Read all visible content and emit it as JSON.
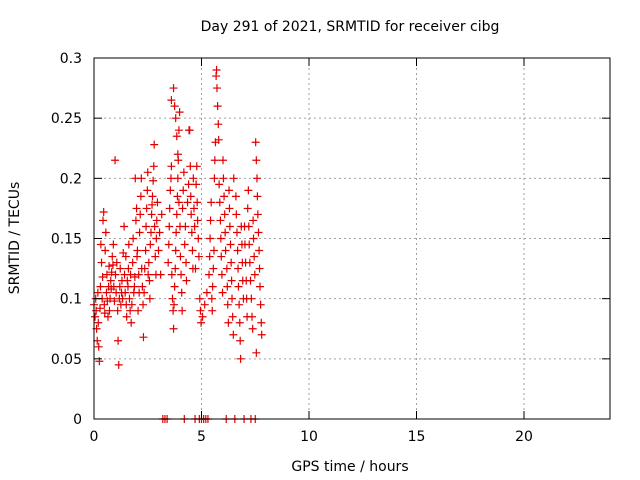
{
  "chart_data": {
    "type": "scatter",
    "title": "Day 291 of 2021, SRMTID for receiver cibg",
    "xlabel": "GPS time / hours",
    "ylabel": "SRMTID / TECUs",
    "xlim": [
      0,
      24
    ],
    "ylim": [
      0,
      0.3
    ],
    "xticks": [
      0,
      5,
      10,
      15,
      20
    ],
    "xtick_labels": [
      "0",
      "5",
      "10",
      "15",
      "20"
    ],
    "yticks": [
      0,
      0.05,
      0.1,
      0.15,
      0.2,
      0.25,
      0.3
    ],
    "ytick_labels": [
      "0",
      "0.05",
      "0.1",
      "0.15",
      "0.2",
      "0.25",
      "0.3"
    ],
    "grid": true,
    "marker": "+",
    "colors": {
      "series": "#e00000",
      "grid": "#a0a0a0",
      "axis": "#000000"
    },
    "series": [
      {
        "points": [
          [
            0.0,
            0.095
          ],
          [
            0.05,
            0.085
          ],
          [
            0.08,
            0.1
          ],
          [
            0.1,
            0.09
          ],
          [
            0.12,
            0.075
          ],
          [
            0.15,
            0.065
          ],
          [
            0.18,
            0.105
          ],
          [
            0.2,
            0.08
          ],
          [
            0.22,
            0.06
          ],
          [
            0.25,
            0.048
          ],
          [
            0.28,
            0.092
          ],
          [
            0.3,
            0.11
          ],
          [
            0.32,
            0.145
          ],
          [
            0.35,
            0.13
          ],
          [
            0.38,
            0.1
          ],
          [
            0.4,
            0.118
          ],
          [
            0.42,
            0.165
          ],
          [
            0.45,
            0.172
          ],
          [
            0.48,
            0.095
          ],
          [
            0.5,
            0.088
          ],
          [
            0.52,
            0.14
          ],
          [
            0.55,
            0.155
          ],
          [
            0.58,
            0.105
          ],
          [
            0.6,
            0.12
          ],
          [
            0.62,
            0.098
          ],
          [
            0.65,
            0.085
          ],
          [
            0.68,
            0.11
          ],
          [
            0.7,
            0.127
          ],
          [
            0.72,
            0.09
          ],
          [
            0.75,
            0.1
          ],
          [
            0.78,
            0.115
          ],
          [
            0.8,
            0.108
          ],
          [
            0.82,
            0.122
          ],
          [
            0.85,
            0.135
          ],
          [
            0.88,
            0.128
          ],
          [
            0.9,
            0.145
          ],
          [
            0.92,
            0.11
          ],
          [
            0.95,
            0.098
          ],
          [
            0.98,
            0.215
          ],
          [
            1.0,
            0.12
          ],
          [
            1.03,
            0.105
          ],
          [
            1.06,
            0.13
          ],
          [
            1.1,
            0.09
          ],
          [
            1.12,
            0.065
          ],
          [
            1.15,
            0.045
          ],
          [
            1.18,
            0.1
          ],
          [
            1.2,
            0.11
          ],
          [
            1.22,
            0.125
          ],
          [
            1.25,
            0.095
          ],
          [
            1.28,
            0.105
          ],
          [
            1.3,
            0.115
          ],
          [
            1.33,
            0.1
          ],
          [
            1.36,
            0.138
          ],
          [
            1.4,
            0.16
          ],
          [
            1.42,
            0.12
          ],
          [
            1.45,
            0.105
          ],
          [
            1.48,
            0.135
          ],
          [
            1.5,
            0.095
          ],
          [
            1.52,
            0.085
          ],
          [
            1.55,
            0.115
          ],
          [
            1.58,
            0.11
          ],
          [
            1.6,
            0.125
          ],
          [
            1.62,
            0.145
          ],
          [
            1.65,
            0.1
          ],
          [
            1.68,
            0.09
          ],
          [
            1.7,
            0.12
          ],
          [
            1.73,
            0.08
          ],
          [
            1.76,
            0.095
          ],
          [
            1.8,
            0.13
          ],
          [
            1.82,
            0.15
          ],
          [
            1.85,
            0.105
          ],
          [
            1.88,
            0.11
          ],
          [
            1.9,
            0.118
          ],
          [
            1.92,
            0.2
          ],
          [
            1.95,
            0.165
          ],
          [
            1.98,
            0.175
          ],
          [
            2.0,
            0.135
          ],
          [
            2.02,
            0.14
          ],
          [
            2.05,
            0.09
          ],
          [
            2.08,
            0.12
          ],
          [
            2.1,
            0.105
          ],
          [
            2.12,
            0.155
          ],
          [
            2.15,
            0.17
          ],
          [
            2.18,
            0.185
          ],
          [
            2.2,
            0.2
          ],
          [
            2.22,
            0.125
          ],
          [
            2.25,
            0.11
          ],
          [
            2.28,
            0.095
          ],
          [
            2.3,
            0.068
          ],
          [
            2.33,
            0.105
          ],
          [
            2.36,
            0.125
          ],
          [
            2.4,
            0.14
          ],
          [
            2.42,
            0.16
          ],
          [
            2.45,
            0.175
          ],
          [
            2.48,
            0.19
          ],
          [
            2.5,
            0.205
          ],
          [
            2.52,
            0.12
          ],
          [
            2.55,
            0.13
          ],
          [
            2.58,
            0.115
          ],
          [
            2.6,
            0.1
          ],
          [
            2.62,
            0.145
          ],
          [
            2.65,
            0.155
          ],
          [
            2.68,
            0.17
          ],
          [
            2.7,
            0.178
          ],
          [
            2.72,
            0.185
          ],
          [
            2.75,
            0.198
          ],
          [
            2.78,
            0.21
          ],
          [
            2.8,
            0.228
          ],
          [
            2.82,
            0.16
          ],
          [
            2.85,
            0.135
          ],
          [
            2.88,
            0.12
          ],
          [
            2.9,
            0.15
          ],
          [
            2.92,
            0.165
          ],
          [
            2.95,
            0.18
          ],
          [
            3.0,
            0.14
          ],
          [
            3.05,
            0.155
          ],
          [
            3.1,
            0.12
          ],
          [
            3.15,
            0.17
          ],
          [
            3.2,
            0.0
          ],
          [
            3.3,
            0.0
          ],
          [
            3.4,
            0.0
          ],
          [
            3.45,
            0.13
          ],
          [
            3.48,
            0.145
          ],
          [
            3.5,
            0.16
          ],
          [
            3.52,
            0.175
          ],
          [
            3.55,
            0.19
          ],
          [
            3.58,
            0.2
          ],
          [
            3.6,
            0.21
          ],
          [
            3.62,
            0.12
          ],
          [
            3.65,
            0.1
          ],
          [
            3.68,
            0.09
          ],
          [
            3.7,
            0.075
          ],
          [
            3.72,
            0.095
          ],
          [
            3.75,
            0.11
          ],
          [
            3.78,
            0.125
          ],
          [
            3.8,
            0.14
          ],
          [
            3.82,
            0.155
          ],
          [
            3.85,
            0.17
          ],
          [
            3.88,
            0.185
          ],
          [
            3.9,
            0.2
          ],
          [
            3.92,
            0.215
          ],
          [
            3.95,
            0.24
          ],
          [
            3.98,
            0.255
          ],
          [
            3.6,
            0.265
          ],
          [
            3.7,
            0.275
          ],
          [
            3.75,
            0.26
          ],
          [
            3.8,
            0.25
          ],
          [
            3.85,
            0.235
          ],
          [
            3.9,
            0.22
          ],
          [
            3.95,
            0.18
          ],
          [
            4.0,
            0.16
          ],
          [
            4.02,
            0.135
          ],
          [
            4.05,
            0.12
          ],
          [
            4.08,
            0.105
          ],
          [
            4.1,
            0.09
          ],
          [
            4.12,
            0.175
          ],
          [
            4.15,
            0.19
          ],
          [
            4.18,
            0.205
          ],
          [
            4.2,
            0.0
          ],
          [
            4.22,
            0.145
          ],
          [
            4.25,
            0.16
          ],
          [
            4.28,
            0.13
          ],
          [
            4.3,
            0.115
          ],
          [
            4.35,
            0.18
          ],
          [
            4.4,
            0.195
          ],
          [
            4.42,
            0.24
          ],
          [
            4.45,
            0.24
          ],
          [
            4.48,
            0.21
          ],
          [
            4.5,
            0.185
          ],
          [
            4.52,
            0.17
          ],
          [
            4.55,
            0.155
          ],
          [
            4.58,
            0.14
          ],
          [
            4.6,
            0.125
          ],
          [
            4.62,
            0.2
          ],
          [
            4.65,
            0.175
          ],
          [
            4.68,
            0.16
          ],
          [
            4.7,
            0.0
          ],
          [
            4.72,
            0.125
          ],
          [
            4.75,
            0.195
          ],
          [
            4.78,
            0.21
          ],
          [
            4.8,
            0.18
          ],
          [
            4.82,
            0.165
          ],
          [
            4.85,
            0.15
          ],
          [
            4.88,
            0.135
          ],
          [
            4.9,
            0.0
          ],
          [
            4.92,
            0.1
          ],
          [
            4.95,
            0.09
          ],
          [
            4.98,
            0.08
          ],
          [
            5.0,
            0.0
          ],
          [
            5.05,
            0.085
          ],
          [
            5.1,
            0.0
          ],
          [
            5.15,
            0.095
          ],
          [
            5.2,
            0.0
          ],
          [
            5.25,
            0.105
          ],
          [
            5.3,
            0.0
          ],
          [
            5.35,
            0.12
          ],
          [
            5.38,
            0.135
          ],
          [
            5.4,
            0.15
          ],
          [
            5.42,
            0.165
          ],
          [
            5.45,
            0.18
          ],
          [
            5.48,
            0.1
          ],
          [
            5.5,
            0.09
          ],
          [
            5.52,
            0.11
          ],
          [
            5.55,
            0.125
          ],
          [
            5.58,
            0.14
          ],
          [
            5.6,
            0.2
          ],
          [
            5.62,
            0.215
          ],
          [
            5.65,
            0.23
          ],
          [
            5.68,
            0.285
          ],
          [
            5.7,
            0.29
          ],
          [
            5.72,
            0.275
          ],
          [
            5.75,
            0.26
          ],
          [
            5.78,
            0.245
          ],
          [
            5.8,
            0.232
          ],
          [
            5.82,
            0.195
          ],
          [
            5.85,
            0.18
          ],
          [
            5.88,
            0.165
          ],
          [
            5.9,
            0.15
          ],
          [
            5.92,
            0.135
          ],
          [
            5.95,
            0.12
          ],
          [
            5.98,
            0.105
          ],
          [
            6.0,
            0.215
          ],
          [
            6.02,
            0.2
          ],
          [
            6.05,
            0.185
          ],
          [
            6.08,
            0.17
          ],
          [
            6.1,
            0.155
          ],
          [
            6.12,
            0.14
          ],
          [
            6.15,
            0.0
          ],
          [
            6.18,
            0.125
          ],
          [
            6.2,
            0.11
          ],
          [
            6.22,
            0.095
          ],
          [
            6.25,
            0.08
          ],
          [
            6.28,
            0.19
          ],
          [
            6.3,
            0.175
          ],
          [
            6.32,
            0.16
          ],
          [
            6.35,
            0.145
          ],
          [
            6.38,
            0.13
          ],
          [
            6.4,
            0.115
          ],
          [
            6.42,
            0.1
          ],
          [
            6.45,
            0.085
          ],
          [
            6.48,
            0.07
          ],
          [
            6.5,
            0.2
          ],
          [
            6.55,
            0.0
          ],
          [
            6.6,
            0.185
          ],
          [
            6.62,
            0.17
          ],
          [
            6.65,
            0.155
          ],
          [
            6.68,
            0.14
          ],
          [
            6.7,
            0.125
          ],
          [
            6.72,
            0.11
          ],
          [
            6.75,
            0.095
          ],
          [
            6.78,
            0.08
          ],
          [
            6.8,
            0.065
          ],
          [
            6.82,
            0.05
          ],
          [
            6.85,
            0.16
          ],
          [
            6.88,
            0.145
          ],
          [
            6.9,
            0.13
          ],
          [
            6.92,
            0.115
          ],
          [
            6.95,
            0.1
          ],
          [
            6.98,
            0.0
          ],
          [
            7.0,
            0.16
          ],
          [
            7.02,
            0.145
          ],
          [
            7.05,
            0.13
          ],
          [
            7.08,
            0.115
          ],
          [
            7.1,
            0.1
          ],
          [
            7.12,
            0.085
          ],
          [
            7.15,
            0.175
          ],
          [
            7.18,
            0.19
          ],
          [
            7.2,
            0.16
          ],
          [
            7.22,
            0.145
          ],
          [
            7.25,
            0.13
          ],
          [
            7.28,
            0.115
          ],
          [
            7.3,
            0.0
          ],
          [
            7.32,
            0.1
          ],
          [
            7.35,
            0.085
          ],
          [
            7.38,
            0.075
          ],
          [
            7.4,
            0.165
          ],
          [
            7.42,
            0.15
          ],
          [
            7.45,
            0.135
          ],
          [
            7.48,
            0.12
          ],
          [
            7.5,
            0.0
          ],
          [
            7.52,
            0.23
          ],
          [
            7.55,
            0.215
          ],
          [
            7.58,
            0.2
          ],
          [
            7.6,
            0.185
          ],
          [
            7.62,
            0.17
          ],
          [
            7.65,
            0.155
          ],
          [
            7.68,
            0.14
          ],
          [
            7.7,
            0.125
          ],
          [
            7.72,
            0.11
          ],
          [
            7.75,
            0.095
          ],
          [
            7.78,
            0.08
          ],
          [
            7.8,
            0.07
          ],
          [
            7.55,
            0.055
          ]
        ]
      }
    ]
  }
}
